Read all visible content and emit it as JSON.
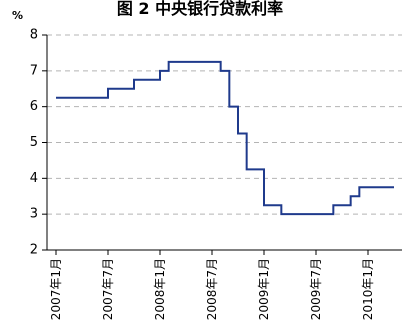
{
  "chart_data": {
    "type": "line",
    "title": "图 2 中央银行贷款利率",
    "unit_label": "%",
    "line_shape": "step",
    "xlabel": "",
    "ylabel": "",
    "ylim": [
      2,
      8
    ],
    "y_ticks": [
      "2",
      "3",
      "4",
      "5",
      "6",
      "7",
      "8"
    ],
    "x_ticks": [
      "2007年1月",
      "2007年7月",
      "2008年1月",
      "2008年7月",
      "2009年1月",
      "2009年7月",
      "2010年1月"
    ],
    "x_range": [
      "2007-01",
      "2010-04"
    ],
    "grid": "horizontal dashed",
    "legend": "none",
    "series": [
      {
        "color": "#1f3a8c",
        "points": [
          {
            "x": "2007-01",
            "y": 6.25
          },
          {
            "x": "2007-07",
            "y": 6.5
          },
          {
            "x": "2007-10",
            "y": 6.75
          },
          {
            "x": "2008-01",
            "y": 7.0
          },
          {
            "x": "2008-02",
            "y": 7.25
          },
          {
            "x": "2008-08",
            "y": 7.0
          },
          {
            "x": "2008-09",
            "y": 6.0
          },
          {
            "x": "2008-10",
            "y": 5.25
          },
          {
            "x": "2008-11",
            "y": 4.25
          },
          {
            "x": "2009-01",
            "y": 3.25
          },
          {
            "x": "2009-03",
            "y": 3.0
          },
          {
            "x": "2009-09",
            "y": 3.25
          },
          {
            "x": "2009-11",
            "y": 3.5
          },
          {
            "x": "2009-12",
            "y": 3.75
          },
          {
            "x": "2010-04",
            "y": 3.75
          }
        ]
      }
    ]
  }
}
